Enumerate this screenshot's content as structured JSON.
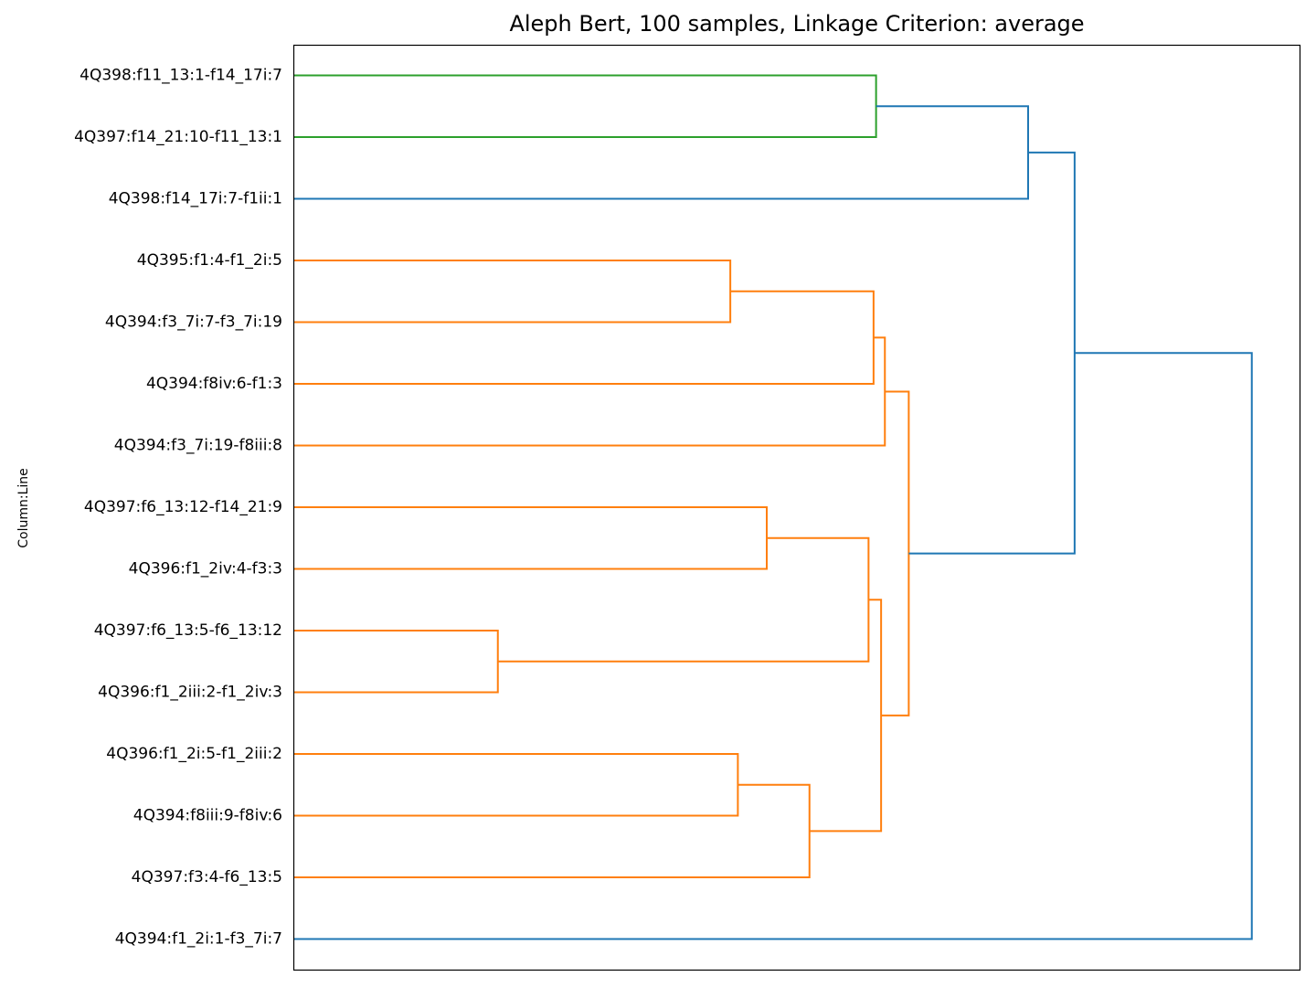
{
  "chart_data": {
    "type": "dendrogram",
    "title": "Aleph Bert, 100 samples, Linkage Criterion: average",
    "xlabel": "",
    "ylabel": "Column:Line",
    "orientation": "left",
    "grid": false,
    "leaves": [
      "4Q398:f11_13:1-f14_17i:7",
      "4Q397:f14_21:10-f11_13:1",
      "4Q398:f14_17i:7-f1ii:1",
      "4Q395:f1:4-f1_2i:5",
      "4Q394:f3_7i:7-f3_7i:19",
      "4Q394:f8iv:6-f1:3",
      "4Q394:f3_7i:19-f8iii:8",
      "4Q397:f6_13:12-f14_21:9",
      "4Q396:f1_2iv:4-f3:3",
      "4Q397:f6_13:5-f6_13:12",
      "4Q396:f1_2iii:2-f1_2iv:3",
      "4Q396:f1_2i:5-f1_2iii:2",
      "4Q394:f8iii:9-f8iv:6",
      "4Q397:f3:4-f6_13:5",
      "4Q394:f1_2i:1-f3_7i:7"
    ],
    "merges": [
      {
        "id": "n1",
        "children": [
          9,
          10
        ],
        "height": 0.162,
        "color": "#ff7f0e"
      },
      {
        "id": "n2",
        "children": [
          3,
          4
        ],
        "height": 0.347,
        "color": "#ff7f0e"
      },
      {
        "id": "n3",
        "children": [
          11,
          12
        ],
        "height": 0.353,
        "color": "#ff7f0e"
      },
      {
        "id": "n4",
        "children": [
          7,
          8
        ],
        "height": 0.376,
        "color": "#ff7f0e"
      },
      {
        "id": "n5",
        "children": [
          "n3",
          13
        ],
        "height": 0.41,
        "color": "#ff7f0e"
      },
      {
        "id": "n6",
        "children": [
          "n4",
          "n1"
        ],
        "height": 0.457,
        "color": "#ff7f0e"
      },
      {
        "id": "n7",
        "children": [
          "n2",
          5
        ],
        "height": 0.461,
        "color": "#ff7f0e"
      },
      {
        "id": "n8",
        "children": [
          0,
          1
        ],
        "height": 0.463,
        "color": "#2ca02c"
      },
      {
        "id": "n9",
        "children": [
          "n6",
          "n5"
        ],
        "height": 0.467,
        "color": "#ff7f0e"
      },
      {
        "id": "n10",
        "children": [
          "n7",
          6
        ],
        "height": 0.47,
        "color": "#ff7f0e"
      },
      {
        "id": "n11",
        "children": [
          "n10",
          "n9"
        ],
        "height": 0.489,
        "color": "#ff7f0e"
      },
      {
        "id": "n12",
        "children": [
          "n8",
          2
        ],
        "height": 0.584,
        "color": "#1f77b4"
      },
      {
        "id": "n13",
        "children": [
          "n12",
          "n11"
        ],
        "height": 0.621,
        "color": "#1f77b4"
      },
      {
        "id": "n14",
        "children": [
          "n13",
          14
        ],
        "height": 0.762,
        "color": "#1f77b4"
      }
    ],
    "xlim": [
      0,
      0.8
    ],
    "colors": {
      "above_threshold": "#1f77b4",
      "cluster_a": "#2ca02c",
      "cluster_b": "#ff7f0e"
    }
  }
}
